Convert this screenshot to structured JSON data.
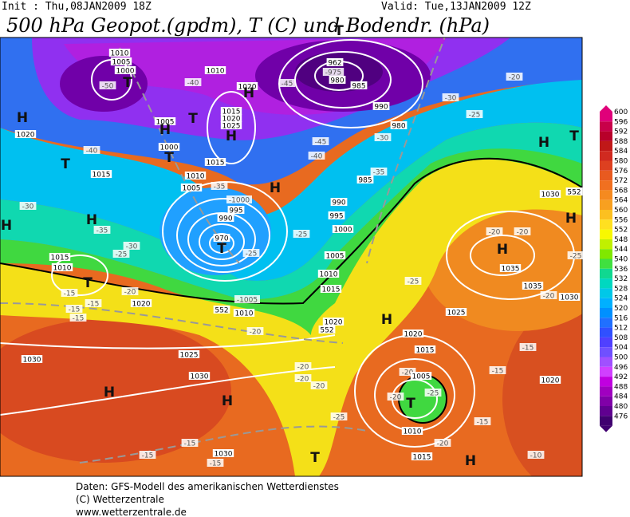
{
  "header": {
    "init": "Init : Thu,08JAN2009 18Z",
    "valid": "Valid: Tue,13JAN2009 12Z",
    "title": "500 hPa Geopot.(gpdm), T (C) und Bodendr. (hPa)"
  },
  "colorbar": {
    "levels": [
      600,
      596,
      592,
      588,
      584,
      580,
      576,
      572,
      568,
      564,
      560,
      556,
      552,
      548,
      544,
      540,
      536,
      532,
      528,
      524,
      520,
      516,
      512,
      508,
      504,
      500,
      496,
      492,
      488,
      484,
      480,
      476
    ],
    "colors": [
      "#e0007a",
      "#c8004a",
      "#b8002a",
      "#c01818",
      "#d02a20",
      "#dd4020",
      "#e85a20",
      "#f07020",
      "#f58a20",
      "#f8a020",
      "#fcc020",
      "#ffe020",
      "#f8f800",
      "#c0f000",
      "#80e800",
      "#40e040",
      "#10d890",
      "#00d8c0",
      "#00c8e8",
      "#00b0ff",
      "#0090ff",
      "#2070ff",
      "#3050ff",
      "#5040ff",
      "#7050ff",
      "#a050ff",
      "#d040ff",
      "#c000e0",
      "#a000c0",
      "#8000a8",
      "#600090",
      "#400070"
    ]
  },
  "map": {
    "labels": [
      "1010",
      "1005",
      "1000",
      "-50",
      "T",
      "H",
      "1020",
      "1005",
      "H",
      "1000",
      "T",
      "T",
      "-40",
      "1015",
      "-40",
      "1010",
      "1020",
      "H",
      "T",
      "1015",
      "1020",
      "1025",
      "H",
      "1015",
      "1010",
      "1005",
      "-35",
      "-1000",
      "995",
      "990",
      "970",
      "T",
      "-25",
      "T",
      "962",
      "-975",
      "980",
      "985",
      "990",
      "-45",
      "-45",
      "-40",
      "980",
      "-30",
      "-35",
      "985",
      "990",
      "995",
      "1000",
      "H",
      "-25",
      "1005",
      "1010",
      "1015",
      "1020",
      "552",
      "-1005",
      "552",
      "1010",
      "-30",
      "H",
      "H",
      "-35",
      "-30",
      "-25",
      "1015",
      "1010",
      "T",
      "-15",
      "-15",
      "-15",
      "-15",
      "-20",
      "1020",
      "-20",
      "1025",
      "1030",
      "H",
      "1030",
      "H",
      "-15",
      "-15",
      "1030",
      "-15",
      "T",
      "-25",
      "-20",
      "-20",
      "-20",
      "H",
      "-25",
      "1020",
      "1015",
      "-20",
      "1005",
      "-25",
      "-20",
      "T",
      "1010",
      "-20",
      "1015",
      "H",
      "-15",
      "-10",
      "1020",
      "-15",
      "-15",
      "1025",
      "H",
      "1035",
      "1035",
      "-20",
      "1030",
      "-20",
      "-20",
      "-25",
      "H",
      "1030",
      "T",
      "H",
      "-20",
      "-25",
      "-30",
      "552"
    ]
  },
  "footer": {
    "lines": [
      "Daten: GFS-Modell des amerikanischen Wetterdienstes",
      "(C) Wetterzentrale",
      "www.wetterzentrale.de"
    ]
  }
}
